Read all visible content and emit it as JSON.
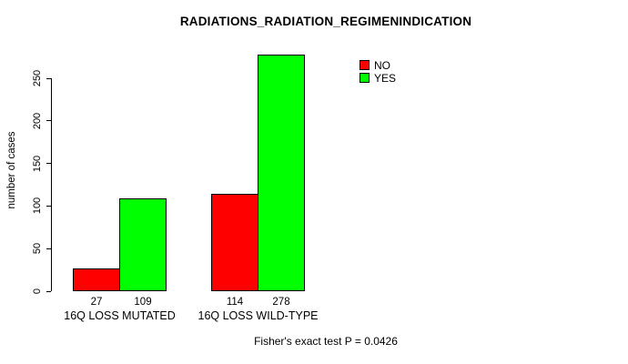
{
  "chart_data": {
    "type": "bar",
    "title": "RADIATIONS_RADIATION_REGIMENINDICATION",
    "ylabel": "number of cases",
    "xlabel": "",
    "categories": [
      "16Q LOSS MUTATED",
      "16Q LOSS WILD-TYPE"
    ],
    "series": [
      {
        "name": "NO",
        "color": "#ff0000",
        "values": [
          27,
          114
        ]
      },
      {
        "name": "YES",
        "color": "#00ff00",
        "values": [
          109,
          278
        ]
      }
    ],
    "bar_value_labels": [
      [
        "27",
        "109"
      ],
      [
        "114",
        "278"
      ]
    ],
    "yticks": [
      0,
      50,
      100,
      150,
      200,
      250
    ],
    "ylim": [
      0,
      280
    ],
    "grid": false,
    "bar_border_color": "#000000",
    "legend": {
      "position": "top-right-inside",
      "items": [
        {
          "label": "NO",
          "color": "#ff0000"
        },
        {
          "label": "YES",
          "color": "#00ff00"
        }
      ]
    },
    "annotation": "Fisher's exact test P = 0.0426"
  }
}
